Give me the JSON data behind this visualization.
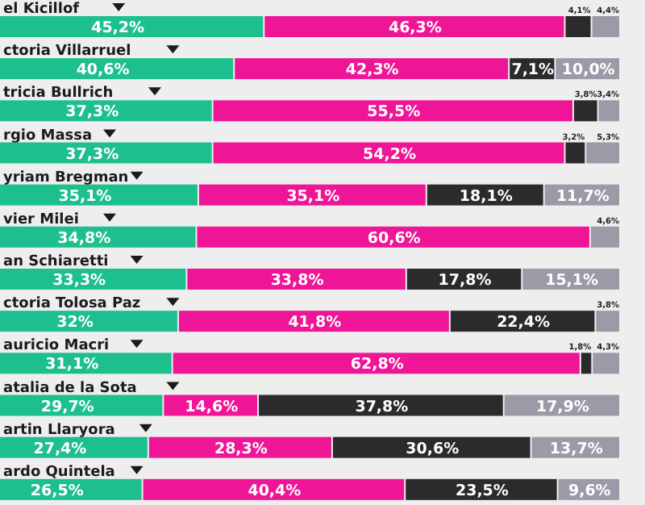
{
  "chart_data": {
    "type": "bar",
    "orientation": "horizontal",
    "stacked": true,
    "categories": [
      "el Kicillof",
      "ctoria Villarruel",
      "tricia Bullrich",
      "rgio Massa",
      "yriam Bregman",
      "vier Milei",
      "an Schiaretti",
      "ctoria Tolosa Paz",
      "auricio Macri",
      "atalia de la Sota",
      "artin Llaryora",
      "ardo Quintela"
    ],
    "series": [
      {
        "color": "#1dbf8e",
        "values": [
          45.2,
          40.6,
          37.3,
          37.3,
          35.1,
          34.8,
          33.3,
          32,
          31.1,
          29.7,
          27.4,
          26.5
        ],
        "value_labels": [
          "45,2%",
          "40,6%",
          "37,3%",
          "37,3%",
          "35,1%",
          "34,8%",
          "33,3%",
          "32%",
          "31,1%",
          "29,7%",
          "27,4%",
          "26,5%"
        ]
      },
      {
        "color": "#ef1597",
        "values": [
          46.3,
          42.3,
          55.5,
          54.2,
          35.1,
          60.6,
          33.8,
          41.8,
          62.8,
          14.6,
          28.3,
          40.4
        ],
        "value_labels": [
          "46,3%",
          "42,3%",
          "55,5%",
          "54,2%",
          "35,1%",
          "60,6%",
          "33,8%",
          "41,8%",
          "62,8%",
          "14,6%",
          "28,3%",
          "40,4%"
        ]
      },
      {
        "color": "#2b2a2c",
        "values": [
          4.1,
          7.1,
          3.8,
          3.2,
          18.1,
          null,
          17.8,
          22.4,
          1.8,
          37.8,
          30.6,
          23.5
        ],
        "value_labels": [
          "4,1%",
          "7,1%",
          "3,8%",
          "3,2%",
          "18,1%",
          null,
          "17,8%",
          "22,4%",
          "1,8%",
          "37,8%",
          "30,6%",
          "23,5%"
        ]
      },
      {
        "color": "#9b9aa6",
        "values": [
          4.4,
          10.0,
          3.4,
          5.3,
          11.7,
          4.6,
          15.1,
          3.8,
          4.3,
          17.9,
          13.7,
          9.6
        ],
        "value_labels": [
          "4,4%",
          "10,0%",
          "3,4%",
          "5,3%",
          "11,7%",
          "4,6%",
          "15,1%",
          "3,8%",
          "4,3%",
          "17,9%",
          "13,7%",
          "9,6%"
        ]
      }
    ]
  }
}
